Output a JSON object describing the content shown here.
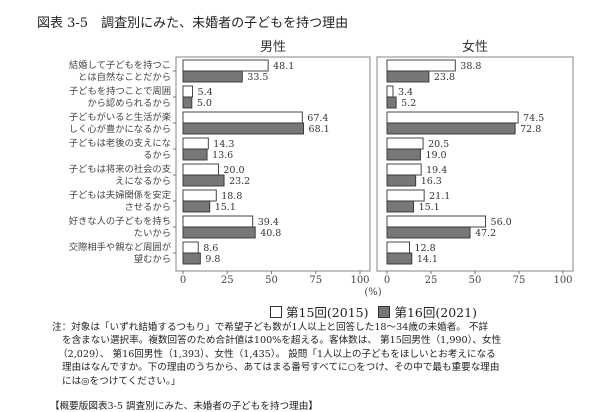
{
  "chart_data": {
    "type": "bar",
    "orientation": "horizontal",
    "title": "図表 3-5　調査別にみた、未婚者の子どもを持つ理由",
    "unit_label": "(%)",
    "xlim": [
      0,
      100
    ],
    "xticks": [
      "0",
      "25",
      "50",
      "75",
      "100"
    ],
    "grid": false,
    "legend_placement": "bottom",
    "categories": [
      [
        "結婚して子どもを持つこ",
        "とは自然なことだから"
      ],
      [
        "子どもを持つことで周囲",
        "から認められるから"
      ],
      [
        "子どもがいると生活が楽",
        "しく心が豊かになるから"
      ],
      [
        "子どもは老後の支えにな",
        "るから"
      ],
      [
        "子どもは将来の社会の支",
        "えになるから"
      ],
      [
        "子どもは夫婦関係を安定",
        "させるから"
      ],
      [
        "好きな人の子どもを持ち",
        "たいから"
      ],
      [
        "交際相手や親など周囲が",
        "望むから"
      ]
    ],
    "panels": [
      {
        "title": "男性",
        "series": [
          {
            "name": "第15回(2015)",
            "color": "#ffffff",
            "values": [
              48.1,
              5.4,
              67.4,
              14.3,
              20.0,
              18.8,
              39.4,
              8.6
            ]
          },
          {
            "name": "第16回(2021)",
            "color": "#777777",
            "values": [
              33.5,
              5.0,
              68.1,
              13.6,
              23.2,
              15.1,
              40.8,
              9.8
            ]
          }
        ]
      },
      {
        "title": "女性",
        "series": [
          {
            "name": "第15回(2015)",
            "color": "#ffffff",
            "values": [
              38.8,
              3.4,
              74.5,
              20.5,
              19.4,
              21.1,
              56.0,
              12.8
            ]
          },
          {
            "name": "第16回(2021)",
            "color": "#777777",
            "values": [
              23.8,
              5.2,
              72.8,
              19.0,
              16.3,
              15.1,
              47.2,
              14.1
            ]
          }
        ]
      }
    ]
  },
  "legend": {
    "s1": "第15回(2015)",
    "s2": "第16回(2021)"
  },
  "notes": [
    "注：対象は「いずれ結婚するつもり」で希望子ども数が1人以上と回答した18～34歳の未婚者。 不詳",
    "を含まない選択率。複数回答のため合計値は100%を超える。客体数は、 第15回男性（1,990）、女性",
    "（2,029）、 第16回男性（1,393）、女性（1,435）。 設問「1人以上の子どもをほしいとお考えになる",
    "理由はなんですか。下の理由のうちから、あてはまる番号すべてに○をつけ、その中で最も重要な理由",
    "には◎をつけてください。」"
  ],
  "source": "【概要版図表3-5 調査別にみた、未婚者の子どもを持つ理由】"
}
